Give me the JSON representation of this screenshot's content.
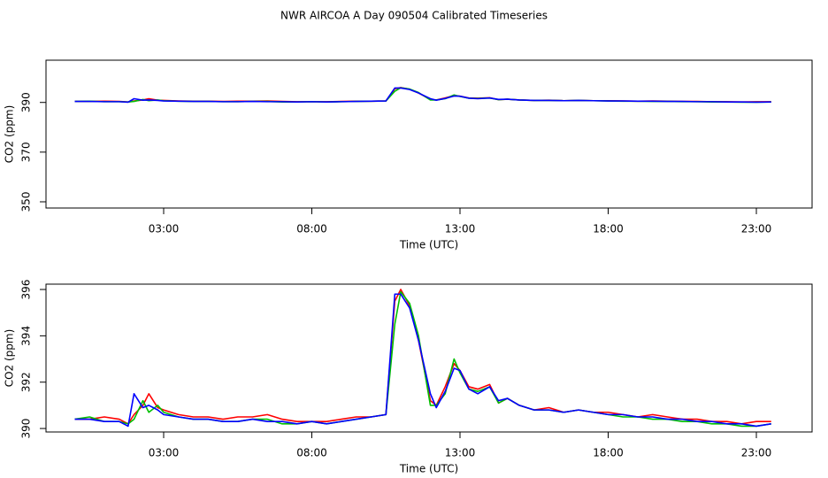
{
  "title": "NWR AIRCOA A  Day 090504  Calibrated Timeseries",
  "chart_data": [
    {
      "type": "line",
      "xlabel": "Time (UTC)",
      "ylabel": "CO2 (ppm)",
      "xlim": [
        -0.97,
        24.88
      ],
      "ylim": [
        347.5,
        407
      ],
      "xticks": [
        {
          "value": 3,
          "label": "03:00"
        },
        {
          "value": 8,
          "label": "08:00"
        },
        {
          "value": 13,
          "label": "13:00"
        },
        {
          "value": 18,
          "label": "18:00"
        },
        {
          "value": 23,
          "label": "23:00"
        }
      ],
      "yticks": [
        350,
        370,
        390
      ],
      "x": [
        0,
        0.5,
        1,
        1.5,
        1.8,
        2,
        2.3,
        2.5,
        2.8,
        3,
        3.5,
        4,
        4.5,
        5,
        5.5,
        6,
        6.5,
        7,
        7.5,
        8,
        8.5,
        9,
        9.5,
        10,
        10.5,
        10.8,
        11,
        11.3,
        11.6,
        12,
        12.2,
        12.5,
        12.8,
        13,
        13.3,
        13.6,
        14,
        14.3,
        14.6,
        15,
        15.5,
        16,
        16.5,
        17,
        17.5,
        18,
        18.5,
        19,
        19.5,
        20,
        20.5,
        21,
        21.5,
        22,
        22.5,
        23,
        23.5
      ],
      "series": [
        {
          "color": "#ff0000",
          "values": [
            390.4,
            390.4,
            390.5,
            390.4,
            390.2,
            390.6,
            391.0,
            391.5,
            390.9,
            390.8,
            390.6,
            390.5,
            390.5,
            390.4,
            390.5,
            390.5,
            390.6,
            390.4,
            390.3,
            390.3,
            390.3,
            390.4,
            390.5,
            390.5,
            390.6,
            395.5,
            396.0,
            395.3,
            393.8,
            391.2,
            391.0,
            391.8,
            392.8,
            392.5,
            391.8,
            391.7,
            391.9,
            391.1,
            391.3,
            391.0,
            390.8,
            390.9,
            390.7,
            390.8,
            390.7,
            390.7,
            390.6,
            390.5,
            390.6,
            390.5,
            390.4,
            390.4,
            390.3,
            390.3,
            390.2,
            390.3,
            390.3
          ]
        },
        {
          "color": "#00c000",
          "values": [
            390.4,
            390.5,
            390.3,
            390.3,
            390.2,
            390.4,
            391.2,
            390.7,
            391.0,
            390.7,
            390.5,
            390.4,
            390.4,
            390.3,
            390.3,
            390.4,
            390.4,
            390.2,
            390.2,
            390.3,
            390.2,
            390.3,
            390.4,
            390.5,
            390.6,
            394.5,
            395.9,
            395.4,
            394.0,
            391.0,
            391.0,
            391.5,
            393.0,
            392.4,
            391.7,
            391.6,
            391.8,
            391.1,
            391.3,
            391.0,
            390.8,
            390.8,
            390.7,
            390.8,
            390.7,
            390.6,
            390.5,
            390.5,
            390.4,
            390.4,
            390.3,
            390.3,
            390.2,
            390.2,
            390.1,
            390.1,
            390.2
          ]
        },
        {
          "color": "#0000ff",
          "values": [
            390.4,
            390.4,
            390.3,
            390.3,
            390.1,
            391.5,
            390.9,
            391.0,
            390.8,
            390.6,
            390.5,
            390.4,
            390.4,
            390.3,
            390.3,
            390.4,
            390.3,
            390.3,
            390.2,
            390.3,
            390.2,
            390.3,
            390.4,
            390.5,
            390.6,
            395.8,
            395.8,
            395.2,
            393.8,
            391.5,
            390.9,
            391.6,
            392.6,
            392.5,
            391.7,
            391.5,
            391.8,
            391.2,
            391.3,
            391.0,
            390.8,
            390.8,
            390.7,
            390.8,
            390.7,
            390.6,
            390.6,
            390.5,
            390.5,
            390.4,
            390.4,
            390.3,
            390.3,
            390.2,
            390.2,
            390.1,
            390.2
          ]
        }
      ]
    },
    {
      "type": "line",
      "xlabel": "Time (UTC)",
      "ylabel": "CO2 (ppm)",
      "xlim": [
        -0.97,
        24.88
      ],
      "ylim": [
        389.85,
        396.23
      ],
      "xticks": [
        {
          "value": 3,
          "label": "03:00"
        },
        {
          "value": 8,
          "label": "08:00"
        },
        {
          "value": 13,
          "label": "13:00"
        },
        {
          "value": 18,
          "label": "18:00"
        },
        {
          "value": 23,
          "label": "23:00"
        }
      ],
      "yticks": [
        390,
        392,
        394,
        396
      ],
      "x": [
        0,
        0.5,
        1,
        1.5,
        1.8,
        2,
        2.3,
        2.5,
        2.8,
        3,
        3.5,
        4,
        4.5,
        5,
        5.5,
        6,
        6.5,
        7,
        7.5,
        8,
        8.5,
        9,
        9.5,
        10,
        10.5,
        10.8,
        11,
        11.3,
        11.6,
        12,
        12.2,
        12.5,
        12.8,
        13,
        13.3,
        13.6,
        14,
        14.3,
        14.6,
        15,
        15.5,
        16,
        16.5,
        17,
        17.5,
        18,
        18.5,
        19,
        19.5,
        20,
        20.5,
        21,
        21.5,
        22,
        22.5,
        23,
        23.5
      ],
      "series": [
        {
          "color": "#ff0000",
          "values": [
            390.4,
            390.4,
            390.5,
            390.4,
            390.2,
            390.6,
            391.0,
            391.5,
            390.9,
            390.8,
            390.6,
            390.5,
            390.5,
            390.4,
            390.5,
            390.5,
            390.6,
            390.4,
            390.3,
            390.3,
            390.3,
            390.4,
            390.5,
            390.5,
            390.6,
            395.5,
            396.0,
            395.3,
            393.8,
            391.2,
            391.0,
            391.8,
            392.8,
            392.5,
            391.8,
            391.7,
            391.9,
            391.1,
            391.3,
            391.0,
            390.8,
            390.9,
            390.7,
            390.8,
            390.7,
            390.7,
            390.6,
            390.5,
            390.6,
            390.5,
            390.4,
            390.4,
            390.3,
            390.3,
            390.2,
            390.3,
            390.3
          ]
        },
        {
          "color": "#00c000",
          "values": [
            390.4,
            390.5,
            390.3,
            390.3,
            390.2,
            390.4,
            391.2,
            390.7,
            391.0,
            390.7,
            390.5,
            390.4,
            390.4,
            390.3,
            390.3,
            390.4,
            390.4,
            390.2,
            390.2,
            390.3,
            390.2,
            390.3,
            390.4,
            390.5,
            390.6,
            394.5,
            395.9,
            395.4,
            394.0,
            391.0,
            391.0,
            391.5,
            393.0,
            392.4,
            391.7,
            391.6,
            391.8,
            391.1,
            391.3,
            391.0,
            390.8,
            390.8,
            390.7,
            390.8,
            390.7,
            390.6,
            390.5,
            390.5,
            390.4,
            390.4,
            390.3,
            390.3,
            390.2,
            390.2,
            390.1,
            390.1,
            390.2
          ]
        },
        {
          "color": "#0000ff",
          "values": [
            390.4,
            390.4,
            390.3,
            390.3,
            390.1,
            391.5,
            390.9,
            391.0,
            390.8,
            390.6,
            390.5,
            390.4,
            390.4,
            390.3,
            390.3,
            390.4,
            390.3,
            390.3,
            390.2,
            390.3,
            390.2,
            390.3,
            390.4,
            390.5,
            390.6,
            395.8,
            395.8,
            395.2,
            393.8,
            391.5,
            390.9,
            391.6,
            392.6,
            392.5,
            391.7,
            391.5,
            391.8,
            391.2,
            391.3,
            391.0,
            390.8,
            390.8,
            390.7,
            390.8,
            390.7,
            390.6,
            390.6,
            390.5,
            390.5,
            390.4,
            390.4,
            390.3,
            390.3,
            390.2,
            390.2,
            390.1,
            390.2
          ]
        }
      ]
    }
  ]
}
